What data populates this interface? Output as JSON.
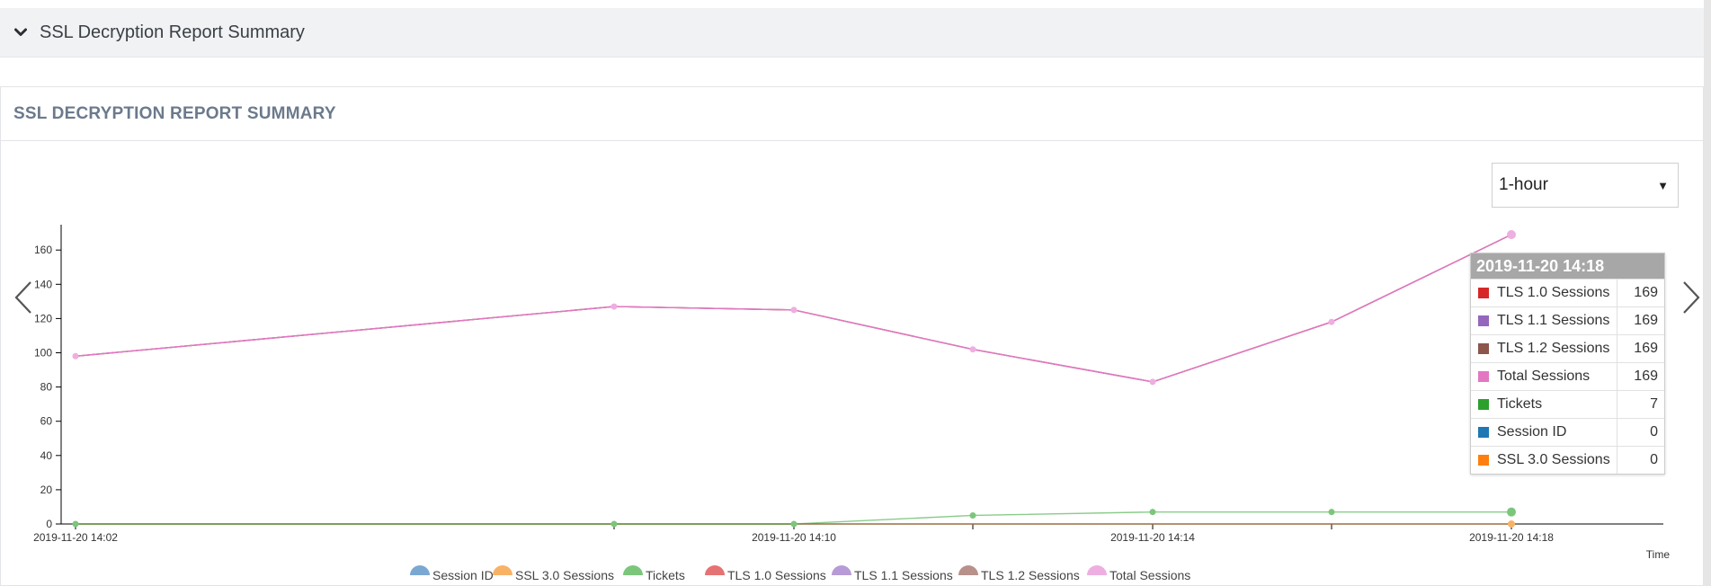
{
  "accordion": {
    "title": "SSL Decryption Report Summary"
  },
  "panel": {
    "title": "SSL DECRYPTION REPORT SUMMARY"
  },
  "range_select": {
    "value": "1-hour"
  },
  "tooltip": {
    "title": "2019-11-20 14:18",
    "rows": [
      {
        "label": "TLS 1.0 Sessions",
        "value": "169",
        "color": "#d62728"
      },
      {
        "label": "TLS 1.1 Sessions",
        "value": "169",
        "color": "#9467bd"
      },
      {
        "label": "TLS 1.2 Sessions",
        "value": "169",
        "color": "#8c564b"
      },
      {
        "label": "Total Sessions",
        "value": "169",
        "color": "#e377c2"
      },
      {
        "label": "Tickets",
        "value": "7",
        "color": "#2ca02c"
      },
      {
        "label": "Session ID",
        "value": "0",
        "color": "#1f77b4"
      },
      {
        "label": "SSL 3.0 Sessions",
        "value": "0",
        "color": "#ff7f0e"
      }
    ]
  },
  "chart_data": {
    "type": "line",
    "xlabel": "Time",
    "ylabel": "",
    "ylim": [
      0,
      175
    ],
    "yticks": [
      0,
      20,
      40,
      60,
      80,
      100,
      120,
      140,
      160
    ],
    "x": [
      "2019-11-20 14:02",
      "2019-11-20 14:08",
      "2019-11-20 14:10",
      "2019-11-20 14:12",
      "2019-11-20 14:14",
      "2019-11-20 14:16",
      "2019-11-20 14:18"
    ],
    "xtick_labels": [
      "2019-11-20 14:02",
      "2019-11-20 14:10",
      "2019-11-20 14:14",
      "2019-11-20 14:18"
    ],
    "legend_position": "bottom",
    "series": [
      {
        "name": "Session ID",
        "color": "#1f77b4",
        "legend_color": "#7ba7d3",
        "values": [
          0,
          0,
          0,
          0,
          0,
          0,
          0
        ]
      },
      {
        "name": "SSL 3.0 Sessions",
        "color": "#ff7f0e",
        "legend_color": "#f8b266",
        "values": [
          0,
          0,
          0,
          0,
          0,
          0,
          0
        ]
      },
      {
        "name": "Tickets",
        "color": "#2ca02c",
        "legend_color": "#7cc67c",
        "values": [
          0,
          0,
          0,
          5,
          7,
          7,
          7
        ]
      },
      {
        "name": "TLS 1.0 Sessions",
        "color": "#d62728",
        "legend_color": "#e57373",
        "values": [
          98,
          127,
          125,
          102,
          83,
          118,
          169
        ]
      },
      {
        "name": "TLS 1.1 Sessions",
        "color": "#9467bd",
        "legend_color": "#b79bd6",
        "values": [
          98,
          127,
          125,
          102,
          83,
          118,
          169
        ]
      },
      {
        "name": "TLS 1.2 Sessions",
        "color": "#8c564b",
        "legend_color": "#b8918a",
        "values": [
          98,
          127,
          125,
          102,
          83,
          118,
          169
        ]
      },
      {
        "name": "Total Sessions",
        "color": "#e377c2",
        "legend_color": "#eeaee0",
        "values": [
          98,
          127,
          125,
          102,
          83,
          118,
          169
        ]
      }
    ]
  }
}
